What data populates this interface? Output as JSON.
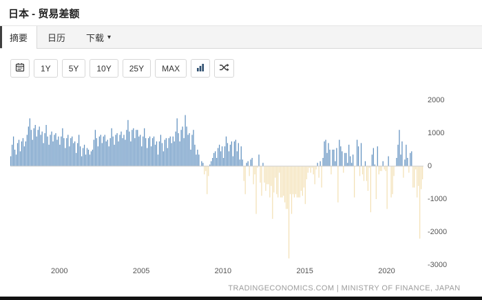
{
  "header": {
    "title": "日本 - 贸易差额"
  },
  "tabs": [
    {
      "label": "摘要",
      "active": true
    },
    {
      "label": "日历",
      "active": false
    },
    {
      "label": "下载",
      "active": false,
      "caret": "▾"
    }
  ],
  "toolbar": {
    "icons": [
      "calendar-icon",
      "bar-chart-icon",
      "compare-icon"
    ],
    "ranges": [
      "1Y",
      "5Y",
      "10Y",
      "25Y",
      "MAX"
    ]
  },
  "chart_data": {
    "type": "bar",
    "title": "日本 - 贸易差额",
    "xlabel": "",
    "ylabel": "",
    "start_year": 1997,
    "start_month": 1,
    "frequency": "monthly",
    "ylim": [
      -3000,
      2000
    ],
    "y_ticks": [
      2000,
      1000,
      0,
      -1000,
      -2000,
      -3000
    ],
    "x_tick_years": [
      2000,
      2005,
      2010,
      2015,
      2020
    ],
    "grid": false,
    "positive_color": "#5d8ebe",
    "negative_color": "#f3e0b4",
    "zero_line_color": "#cccccc",
    "values": [
      300,
      650,
      900,
      500,
      350,
      700,
      800,
      450,
      750,
      850,
      600,
      750,
      950,
      1200,
      1450,
      1100,
      800,
      1150,
      1250,
      900,
      1100,
      1200,
      950,
      1050,
      700,
      1000,
      1250,
      900,
      650,
      950,
      1050,
      750,
      950,
      1000,
      800,
      900,
      650,
      900,
      1150,
      850,
      550,
      850,
      950,
      600,
      850,
      900,
      700,
      750,
      400,
      700,
      950,
      600,
      300,
      550,
      650,
      350,
      550,
      500,
      350,
      450,
      500,
      800,
      1100,
      850,
      600,
      900,
      950,
      700,
      900,
      950,
      750,
      800,
      600,
      850,
      1150,
      900,
      650,
      950,
      1000,
      750,
      950,
      1050,
      850,
      950,
      800,
      1100,
      1400,
      1050,
      750,
      1100,
      1150,
      850,
      1100,
      1100,
      900,
      950,
      600,
      900,
      1150,
      850,
      550,
      850,
      900,
      600,
      850,
      900,
      650,
      750,
      350,
      750,
      950,
      700,
      450,
      800,
      850,
      550,
      850,
      900,
      700,
      900,
      750,
      1050,
      1450,
      1000,
      750,
      1100,
      1200,
      850,
      1550,
      1200,
      950,
      1000,
      500,
      950,
      1100,
      650,
      350,
      500,
      350,
      0,
      150,
      100,
      -250,
      -150,
      -850,
      -300,
      50,
      150,
      250,
      400,
      450,
      250,
      550,
      650,
      450,
      600,
      250,
      600,
      900,
      700,
      450,
      650,
      750,
      300,
      750,
      800,
      450,
      700,
      200,
      600,
      200,
      -450,
      -850,
      100,
      150,
      -300,
      200,
      250,
      -550,
      -250,
      -1450,
      -50,
      350,
      -500,
      -900,
      100,
      -500,
      -750,
      -550,
      -550,
      -950,
      -600,
      -1600,
      -800,
      -350,
      -850,
      -950,
      -200,
      -950,
      -950,
      -900,
      -1100,
      -1300,
      -1300,
      -2800,
      -850,
      -1450,
      -850,
      -950,
      -850,
      -950,
      -950,
      -950,
      -750,
      -900,
      -650,
      -1150,
      -400,
      -200,
      -50,
      -200,
      -50,
      -250,
      -550,
      -100,
      100,
      -350,
      150,
      -650,
      250,
      750,
      800,
      400,
      700,
      500,
      -250,
      500,
      500,
      150,
      550,
      -1100,
      800,
      600,
      450,
      -200,
      400,
      400,
      100,
      650,
      300,
      100,
      350,
      -950,
      0,
      800,
      600,
      -300,
      700,
      -250,
      -450,
      150,
      -450,
      -750,
      -50,
      -1400,
      350,
      550,
      50,
      -1000,
      600,
      -250,
      -150,
      -150,
      150,
      -100,
      -150,
      -1300,
      300,
      0,
      -950,
      -850,
      -300,
      0,
      250,
      650,
      1100,
      350,
      750,
      -350,
      200,
      650,
      250,
      -200,
      400,
      450,
      -650,
      -650,
      -100,
      -950,
      -600,
      -2200,
      -700,
      -400
    ]
  },
  "footer": {
    "attribution": "TRADINGECONOMICS.COM | MINISTRY OF FINANCE, JAPAN"
  }
}
